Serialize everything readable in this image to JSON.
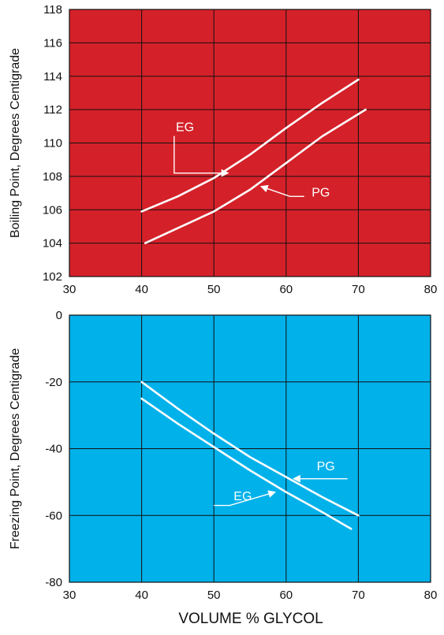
{
  "figure": {
    "xlabel": "VOLUME % GLYCOL"
  },
  "chart_data": [
    {
      "type": "line",
      "ylabel": "Boiling Point, Degrees Centigrade",
      "xlim": [
        30,
        80
      ],
      "ylim": [
        102,
        118
      ],
      "x_ticks": [
        "30",
        "40",
        "50",
        "60",
        "70",
        "80"
      ],
      "y_ticks": [
        "102",
        "104",
        "106",
        "108",
        "110",
        "112",
        "114",
        "116",
        "118"
      ],
      "background": "#d42129",
      "grid": true,
      "series": [
        {
          "name": "EG",
          "x": [
            40,
            45,
            50,
            55,
            60,
            65,
            70
          ],
          "y": [
            105.9,
            106.8,
            107.9,
            109.3,
            110.9,
            112.4,
            113.8
          ]
        },
        {
          "name": "PG",
          "x": [
            40.5,
            45,
            50,
            55,
            60,
            65,
            71
          ],
          "y": [
            104.0,
            104.9,
            105.9,
            107.2,
            108.8,
            110.4,
            112.0
          ]
        }
      ],
      "annotations": [
        {
          "text": "EG",
          "x": 46,
          "y": 110.7,
          "arrow_from": [
            44.5,
            108.2
          ],
          "arrow_to": [
            52,
            108.2
          ]
        },
        {
          "text": "PG",
          "x": 64.8,
          "y": 106.8,
          "arrow_from": [
            62.5,
            106.8
          ],
          "arrow_to": [
            56.5,
            107.4
          ]
        }
      ]
    },
    {
      "type": "line",
      "ylabel": "Freezing Point, Degrees Centigrade",
      "xlim": [
        30,
        80
      ],
      "ylim": [
        -80,
        0
      ],
      "x_ticks": [
        "30",
        "40",
        "50",
        "60",
        "70",
        "80"
      ],
      "y_ticks": [
        "0",
        "-20",
        "-40",
        "-60",
        "-80"
      ],
      "background": "#00b1ea",
      "grid": true,
      "series": [
        {
          "name": "PG",
          "x": [
            40,
            45,
            50,
            55,
            60,
            65,
            70
          ],
          "y": [
            -20.0,
            -28.0,
            -35.5,
            -42.5,
            -48.5,
            -54.5,
            -60.0
          ]
        },
        {
          "name": "EG",
          "x": [
            40,
            45,
            50,
            55,
            60,
            65,
            69
          ],
          "y": [
            -25.0,
            -32.5,
            -39.5,
            -46.5,
            -53.0,
            -59.0,
            -64.0
          ]
        }
      ],
      "annotations": [
        {
          "text": "PG",
          "x": 65.5,
          "y": -46.5,
          "arrow_from": [
            68.5,
            -49
          ],
          "arrow_to": [
            61,
            -49
          ]
        },
        {
          "text": "EG",
          "x": 54,
          "y": -55.5,
          "arrow_from": [
            50,
            -57
          ],
          "arrow_to": [
            58.5,
            -53
          ]
        }
      ]
    }
  ]
}
